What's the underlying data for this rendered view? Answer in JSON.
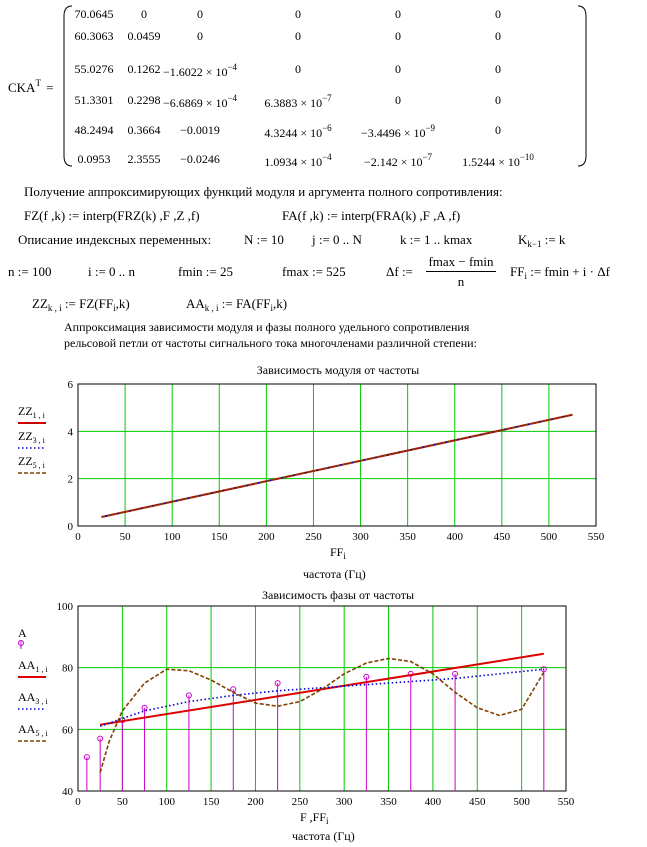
{
  "matrix": {
    "label": "CKA",
    "sup": "T",
    "eq": "=",
    "rows": [
      [
        "70.0645",
        "0",
        "0",
        "0",
        "0",
        "0"
      ],
      [
        "60.3063",
        "0.0459",
        "0",
        "0",
        "0",
        "0"
      ],
      [
        "55.0276",
        "0.1262",
        "−1.6022 × 10",
        "0",
        "0",
        "0"
      ],
      [
        "51.3301",
        "0.2298",
        "−6.6869 × 10",
        "6.3883 × 10",
        "0",
        "0"
      ],
      [
        "48.2494",
        "0.3664",
        "−0.0019",
        "4.3244 × 10",
        "−3.4496 × 10",
        "0"
      ],
      [
        "0.0953",
        "2.3555",
        "−0.0246",
        "1.0934 × 10",
        "−2.142 × 10",
        "1.5244 × 10"
      ]
    ],
    "exponents": [
      [
        "",
        "",
        "",
        "",
        "",
        ""
      ],
      [
        "",
        "",
        "",
        "",
        "",
        ""
      ],
      [
        "",
        "",
        "−4",
        "",
        "",
        ""
      ],
      [
        "",
        "",
        "−4",
        "−7",
        "",
        ""
      ],
      [
        "",
        "",
        "",
        "−6",
        "−9",
        ""
      ],
      [
        "",
        "",
        "",
        "−4",
        "−7",
        "−10"
      ]
    ]
  },
  "text": {
    "heading1": "Получение аппроксимирующих функций модуля и аргумента полного сопротивления:",
    "fz_def": "FZ(f ,k) := interp(FRZ(k) ,F ,Z ,f)",
    "fa_def": "FA(f ,k) := interp(FRA(k) ,F ,A ,f)",
    "index_heading": "Описание индексных переменных:",
    "n_def": "N := 10",
    "j_def": "j := 0 .. N",
    "k_def": "k := 1 .. kmax",
    "K_lhs": "K",
    "K_sub": "k−1",
    "K_rhs": " := k",
    "nn_def": "n := 100",
    "i_def": "i := 0 .. n",
    "fmin_def": "fmin := 25",
    "fmax_def": "fmax := 525",
    "df_lhs": "Δf :=",
    "df_num": "fmax − fmin",
    "df_den": "n",
    "ff_lhs": "FF",
    "ff_sub": "i",
    "ff_rhs": " := fmin + i · Δf",
    "zz_lhs": "ZZ",
    "zz_sub": "k , i",
    "zz_rhs": " := FZ(FF",
    "zz_rhs_sub": "i",
    "zz_rhs_end": ",k)",
    "aa_lhs": "AA",
    "aa_sub": "k , i",
    "aa_rhs": " := FA(FF",
    "aa_rhs_sub": "i",
    "aa_rhs_end": ",k)",
    "para1": "Аппроксимация зависимости модуля и фазы полного удельного сопротивления",
    "para2": "рельсовой петли от частоты сигнального тока многочленами различной степени:"
  },
  "chart_data": [
    {
      "type": "line",
      "title": "Зависимость модуля от частоты",
      "xlabel": "FF",
      "xlabel_sub": "i",
      "xlabel2": "частота (Гц)",
      "xlim": [
        0,
        550
      ],
      "ylim": [
        0,
        6
      ],
      "xticks": [
        0,
        50,
        100,
        150,
        200,
        250,
        300,
        350,
        400,
        450,
        500,
        550
      ],
      "yticks": [
        0,
        2,
        4,
        6
      ],
      "grid": true,
      "legend_placement": "left",
      "series": [
        {
          "name": "ZZ",
          "name_sub": "1 , i",
          "color": "#cc0000",
          "style": "solid",
          "x": [
            25,
            525
          ],
          "values": [
            0.38,
            4.7
          ]
        },
        {
          "name": "ZZ",
          "name_sub": "3 , i",
          "color": "#0000cc",
          "style": "dotted",
          "x": [
            25,
            525
          ],
          "values": [
            0.38,
            4.7
          ]
        },
        {
          "name": "ZZ",
          "name_sub": "5 , i",
          "color": "#804000",
          "style": "dashed",
          "x": [
            25,
            525
          ],
          "values": [
            0.38,
            4.7
          ]
        }
      ]
    },
    {
      "type": "line",
      "title": "Зависимость  фазы от частоты",
      "xlabel": "F ,FF",
      "xlabel_sub": "i",
      "xlabel2": "частота (Гц)",
      "xlim": [
        0,
        550
      ],
      "ylim": [
        40,
        100
      ],
      "xticks": [
        0,
        50,
        100,
        150,
        200,
        250,
        300,
        350,
        400,
        450,
        500,
        550
      ],
      "yticks": [
        40,
        60,
        80,
        100
      ],
      "grid": true,
      "legend_placement": "left",
      "stems": {
        "name": "A",
        "color": "#cc00cc",
        "x": [
          10,
          25,
          50,
          75,
          125,
          175,
          225,
          325,
          375,
          425,
          525
        ],
        "values": [
          51,
          57,
          63,
          67,
          71,
          73,
          75,
          77,
          78,
          78,
          79.5
        ]
      },
      "series": [
        {
          "name": "AA",
          "name_sub": "1 , i",
          "color": "#dd0000",
          "style": "solid",
          "x": [
            25,
            525
          ],
          "values": [
            61.5,
            84.5
          ]
        },
        {
          "name": "AA",
          "name_sub": "3 , i",
          "color": "#0000cc",
          "style": "dotted",
          "x": [
            25,
            75,
            125,
            175,
            225,
            275,
            325,
            375,
            425,
            475,
            525
          ],
          "values": [
            61,
            66,
            69,
            71,
            72.5,
            73.5,
            74.5,
            75.5,
            76.5,
            78,
            79.5
          ]
        },
        {
          "name": "AA",
          "name_sub": "5 , i",
          "color": "#804000",
          "style": "dashed",
          "x": [
            25,
            35,
            50,
            75,
            100,
            125,
            150,
            175,
            200,
            225,
            250,
            275,
            300,
            325,
            350,
            375,
            400,
            425,
            450,
            475,
            500,
            525
          ],
          "values": [
            46,
            56,
            66,
            75,
            79.5,
            79,
            76,
            72,
            68.5,
            67.5,
            69,
            73,
            78,
            81.5,
            83,
            82,
            78,
            72,
            67,
            64.5,
            66.5,
            78.5
          ]
        }
      ]
    }
  ]
}
